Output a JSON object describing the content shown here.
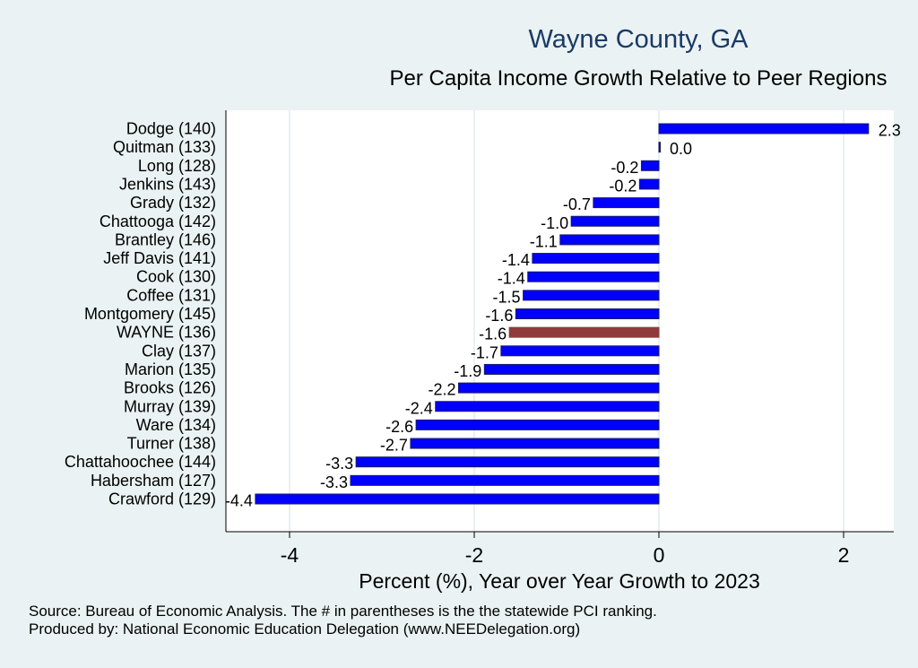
{
  "chart_data": {
    "type": "bar",
    "orientation": "horizontal",
    "title": "Wayne County, GA",
    "subtitle": "Per Capita Income Growth Relative to Peer Regions",
    "xlabel": "Percent (%), Year over Year Growth to 2023",
    "ylabel": "",
    "xlim": [
      -4.6,
      2.55
    ],
    "xticks": [
      -4,
      -2,
      0,
      2
    ],
    "xtick_labels": [
      "-4",
      "-2",
      "0",
      "2"
    ],
    "grid": true,
    "categories": [
      "Dodge (140)",
      "Quitman (133)",
      "Long (128)",
      "Jenkins (143)",
      "Grady (132)",
      "Chattooga (142)",
      "Brantley (146)",
      "Jeff Davis (141)",
      "Cook (130)",
      "Coffee (131)",
      "Montgomery (145)",
      "WAYNE (136)",
      "Clay (137)",
      "Marion (135)",
      "Brooks (126)",
      "Murray (139)",
      "Ware (134)",
      "Turner (138)",
      "Chattahoochee (144)",
      "Habersham (127)",
      "Crawford (129)"
    ],
    "values": [
      2.27,
      0.01,
      -0.19,
      -0.21,
      -0.71,
      -0.95,
      -1.07,
      -1.37,
      -1.42,
      -1.47,
      -1.55,
      -1.62,
      -1.71,
      -1.89,
      -2.17,
      -2.42,
      -2.63,
      -2.69,
      -3.28,
      -3.34,
      -4.37
    ],
    "value_labels": [
      "2.3",
      "0.0",
      "-0.2",
      "-0.2",
      "-0.7",
      "-1.0",
      "-1.1",
      "-1.4",
      "-1.4",
      "-1.5",
      "-1.6",
      "-1.6",
      "-1.7",
      "-1.9",
      "-2.2",
      "-2.4",
      "-2.6",
      "-2.7",
      "-3.3",
      "-3.3",
      "-4.4"
    ],
    "highlight_index": 11,
    "colors": {
      "bar": "#0000ff",
      "bar_edge": "#1a1a66",
      "highlight": "#8f3b3b",
      "grid": "#e3ecee",
      "plot_bg": "#ffffff",
      "page_bg": "#eaf2f3",
      "title": "#1a3a66"
    }
  },
  "notes": {
    "source": "Source: Bureau of Economic Analysis. The # in parentheses is the the statewide PCI ranking.",
    "producer": "Produced by: National Economic Education Delegation (www.NEEDelegation.org)"
  }
}
